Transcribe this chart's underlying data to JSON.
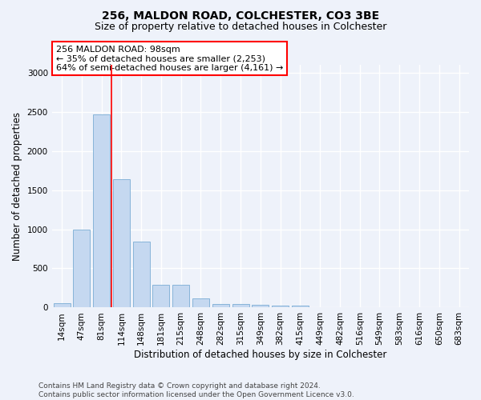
{
  "title": "256, MALDON ROAD, COLCHESTER, CO3 3BE",
  "subtitle": "Size of property relative to detached houses in Colchester",
  "xlabel": "Distribution of detached houses by size in Colchester",
  "ylabel": "Number of detached properties",
  "categories": [
    "14sqm",
    "47sqm",
    "81sqm",
    "114sqm",
    "148sqm",
    "181sqm",
    "215sqm",
    "248sqm",
    "282sqm",
    "315sqm",
    "349sqm",
    "382sqm",
    "415sqm",
    "449sqm",
    "482sqm",
    "516sqm",
    "549sqm",
    "583sqm",
    "616sqm",
    "650sqm",
    "683sqm"
  ],
  "values": [
    55,
    1000,
    2460,
    1640,
    840,
    290,
    290,
    120,
    50,
    45,
    35,
    20,
    30,
    0,
    0,
    0,
    0,
    0,
    0,
    0,
    0
  ],
  "bar_color": "#c5d8f0",
  "bar_edge_color": "#7aadd4",
  "vline_x": 2.5,
  "vline_color": "red",
  "annotation_line1": "256 MALDON ROAD: 98sqm",
  "annotation_line2": "← 35% of detached houses are smaller (2,253)",
  "annotation_line3": "64% of semi-detached houses are larger (4,161) →",
  "annotation_box_color": "white",
  "annotation_box_edge_color": "red",
  "ylim": [
    0,
    3100
  ],
  "yticks": [
    0,
    500,
    1000,
    1500,
    2000,
    2500,
    3000
  ],
  "footnote": "Contains HM Land Registry data © Crown copyright and database right 2024.\nContains public sector information licensed under the Open Government Licence v3.0.",
  "title_fontsize": 10,
  "subtitle_fontsize": 9,
  "xlabel_fontsize": 8.5,
  "ylabel_fontsize": 8.5,
  "tick_fontsize": 7.5,
  "annot_fontsize": 8,
  "footnote_fontsize": 6.5,
  "background_color": "#eef2fa",
  "grid_color": "#ffffff"
}
